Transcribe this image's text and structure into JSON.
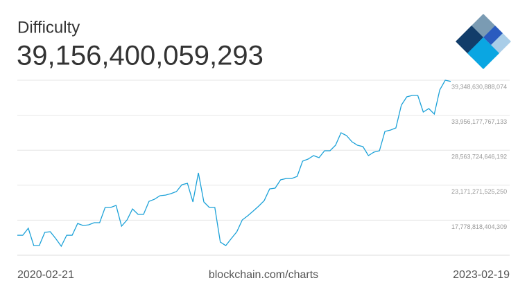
{
  "chart_data": {
    "type": "line",
    "title": "Difficulty",
    "headline": "39,156,400,059,293",
    "source": "blockchain.com/charts",
    "x_start_label": "2020-02-21",
    "x_end_label": "2023-02-19",
    "color": "#1ba1d8",
    "grid": true,
    "ylim": [
      12386365524868,
      39348630888074
    ],
    "yticks": [
      {
        "value": 17778818404309,
        "label": "17,778,818,404,309"
      },
      {
        "value": 23171271525250,
        "label": "23,171,271,525,250"
      },
      {
        "value": 28563724646192,
        "label": "28,563,724,646,192"
      },
      {
        "value": 33956177767133,
        "label": "33,956,177,767,133"
      },
      {
        "value": 39348630888074,
        "label": "39,348,630,888,074"
      }
    ],
    "values": [
      15470000000000.0,
      15470000000000.0,
      16540000000000.0,
      13870000000000.0,
      13870000000000.0,
      15900000000000.0,
      16000000000000.0,
      14940000000000.0,
      13770000000000.0,
      15470000000000.0,
      15470000000000.0,
      17280000000000.0,
      16960000000000.0,
      17070000000000.0,
      17390000000000.0,
      17390000000000.0,
      19740000000000.0,
      19740000000000.0,
      20060000000000.0,
      16860000000000.0,
      17820000000000.0,
      19520000000000.0,
      18670000000000.0,
      18670000000000.0,
      20690000000000.0,
      21010000000000.0,
      21550000000000.0,
      21650000000000.0,
      21870000000000.0,
      22190000000000.0,
      23250000000000.0,
      23470000000000.0,
      20590000000000.0,
      25070000000000.0,
      20590000000000.0,
      19740000000000.0,
      19740000000000.0,
      14410000000000.0,
      13870000000000.0,
      14940000000000.0,
      16000000000000.0,
      17820000000000.0,
      18460000000000.0,
      19200000000000.0,
      19950000000000.0,
      20800000000000.0,
      22610000000000.0,
      22720000000000.0,
      24000000000000.0,
      24210000000000.0,
      24210000000000.0,
      24530000000000.0,
      26880000000000.0,
      27200000000000.0,
      27730000000000.0,
      27410000000000.0,
      28480000000000.0,
      28480000000000.0,
      29330000000000.0,
      31250000000000.0,
      30820000000000.0,
      29860000000000.0,
      29330000000000.0,
      29120000000000.0,
      27730000000000.0,
      28260000000000.0,
      28480000000000.0,
      31460000000000.0,
      31670000000000.0,
      31990000000000.0,
      35510000000000.0,
      36790000000000.0,
      37000000000000.0,
      37000000000000.0,
      34450000000000.0,
      34980000000000.0,
      34130000000000.0,
      37860000000000.0,
      39350000000000.0,
      39160000000000.0
    ]
  }
}
